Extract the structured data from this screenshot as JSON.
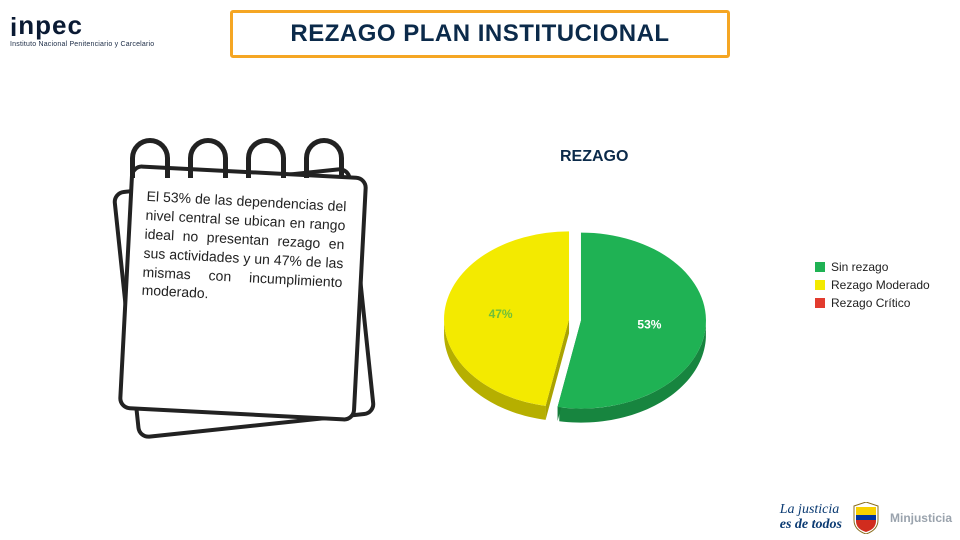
{
  "logo": {
    "brand": "inpec",
    "subtitle": "Instituto Nacional Penitenciario y Carcelario"
  },
  "title": "REZAGO PLAN INSTITUCIONAL",
  "notepad": {
    "text": "El 53% de las dependencias del nivel central se ubican en rango ideal no presentan rezago en sus actividades y un 47% de las mismas con incumplimiento moderado."
  },
  "chart": {
    "type": "pie",
    "title": "REZAGO",
    "slices": [
      {
        "label": "47%",
        "value": 47,
        "color": "#f3ea00",
        "legend": "Rezago Moderado",
        "label_color": "#6fbf3a"
      },
      {
        "label": "53%",
        "value": 53,
        "color": "#1fb254",
        "legend": "Sin rezago",
        "label_color": "#ffffff"
      }
    ],
    "background_color": "#ffffff",
    "label_fontsize": 12,
    "explode": 6,
    "depth": 14
  },
  "legend": {
    "items": [
      {
        "color": "#1fb254",
        "label": "Sin rezago"
      },
      {
        "color": "#f3ea00",
        "label": "Rezago Moderado"
      },
      {
        "color": "#e23b2e",
        "label": "Rezago Crítico"
      }
    ],
    "fontsize": 12
  },
  "footer": {
    "tagline_line1": "La justicia",
    "tagline_line2": "es de todos",
    "ministry": "Minjusticia"
  }
}
